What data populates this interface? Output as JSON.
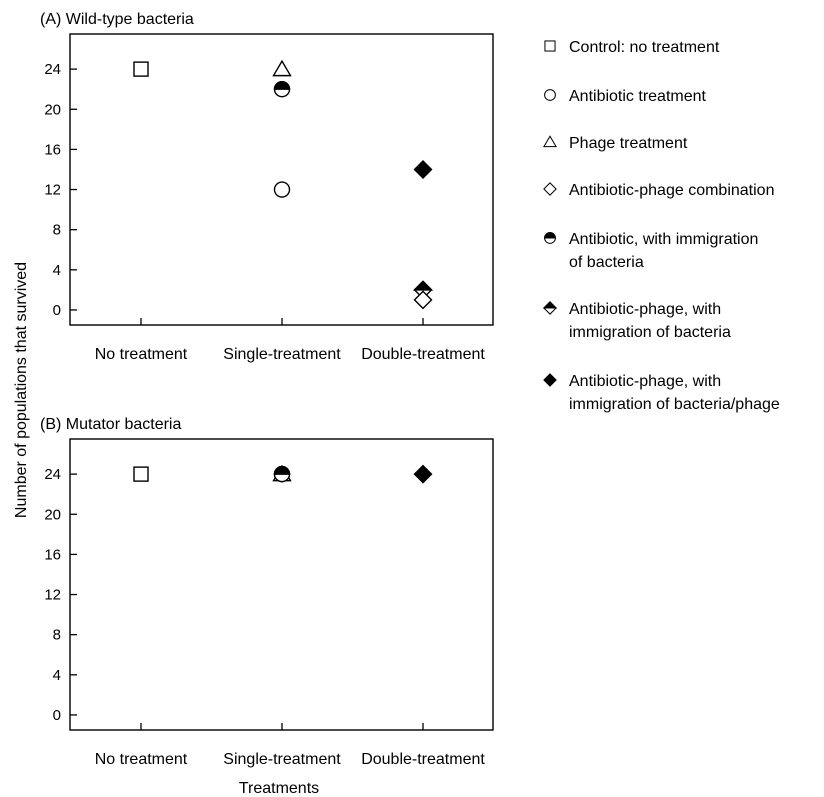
{
  "ylabel": "Number of populations that survived",
  "xlabel": "Treatments",
  "legend": [
    {
      "marker": "square-open",
      "lines": [
        "Control: no treatment"
      ]
    },
    {
      "marker": "circle-open",
      "lines": [
        "Antibiotic treatment"
      ]
    },
    {
      "marker": "triangle-open",
      "lines": [
        "Phage treatment"
      ]
    },
    {
      "marker": "diamond-open",
      "lines": [
        "Antibiotic-phage combination"
      ]
    },
    {
      "marker": "circle-half",
      "lines": [
        "Antibiotic, with immigration",
        "of bacteria"
      ]
    },
    {
      "marker": "diamond-half",
      "lines": [
        "Antibiotic-phage, with",
        "immigration of bacteria"
      ]
    },
    {
      "marker": "diamond-filled",
      "lines": [
        "Antibiotic-phage, with",
        "immigration of bacteria/phage"
      ]
    }
  ],
  "chart_data": [
    {
      "type": "scatter",
      "title": "(A) Wild-type bacteria",
      "categories": [
        "No treatment",
        "Single-treatment",
        "Double-treatment"
      ],
      "yticks": [
        0,
        4,
        8,
        12,
        16,
        20,
        24
      ],
      "ylim": [
        -1.5,
        27.5
      ],
      "points": [
        {
          "category": "No treatment",
          "value": 24,
          "marker": "square-open"
        },
        {
          "category": "Single-treatment",
          "value": 24,
          "marker": "triangle-open"
        },
        {
          "category": "Single-treatment",
          "value": 22,
          "marker": "circle-half"
        },
        {
          "category": "Single-treatment",
          "value": 12,
          "marker": "circle-open"
        },
        {
          "category": "Double-treatment",
          "value": 14,
          "marker": "diamond-filled"
        },
        {
          "category": "Double-treatment",
          "value": 2,
          "marker": "diamond-half"
        },
        {
          "category": "Double-treatment",
          "value": 1,
          "marker": "diamond-open"
        }
      ]
    },
    {
      "type": "scatter",
      "title": "(B) Mutator bacteria",
      "categories": [
        "No treatment",
        "Single-treatment",
        "Double-treatment"
      ],
      "yticks": [
        0,
        4,
        8,
        12,
        16,
        20,
        24
      ],
      "ylim": [
        -1.5,
        27.5
      ],
      "points": [
        {
          "category": "No treatment",
          "value": 24,
          "marker": "square-open"
        },
        {
          "category": "Single-treatment",
          "value": 24,
          "marker": "circle-open"
        },
        {
          "category": "Single-treatment",
          "value": 24,
          "marker": "triangle-open"
        },
        {
          "category": "Single-treatment",
          "value": 24,
          "marker": "circle-half"
        },
        {
          "category": "Double-treatment",
          "value": 24,
          "marker": "diamond-filled"
        }
      ]
    }
  ]
}
